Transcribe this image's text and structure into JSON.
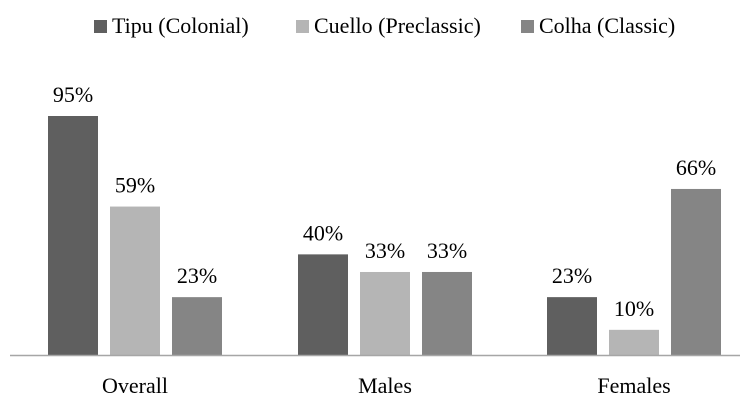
{
  "chart_data": {
    "type": "bar",
    "categories": [
      "Overall",
      "Males",
      "Females"
    ],
    "series": [
      {
        "name": "Tipu (Colonial)",
        "values": [
          95,
          40,
          23
        ],
        "labels": [
          "95%",
          "40%",
          "23%"
        ],
        "color": "#5f5f5f"
      },
      {
        "name": "Cuello (Preclassic)",
        "values": [
          59,
          33,
          10
        ],
        "labels": [
          "59%",
          "33%",
          "10%"
        ],
        "color": "#b5b5b5"
      },
      {
        "name": "Colha (Classic)",
        "values": [
          23,
          33,
          66
        ],
        "labels": [
          "23%",
          "33%",
          "66%"
        ],
        "color": "#858585"
      }
    ],
    "ylim": [
      0,
      100
    ],
    "grid": false,
    "legend_position": "top",
    "axis_color": "#a6a6a6"
  }
}
